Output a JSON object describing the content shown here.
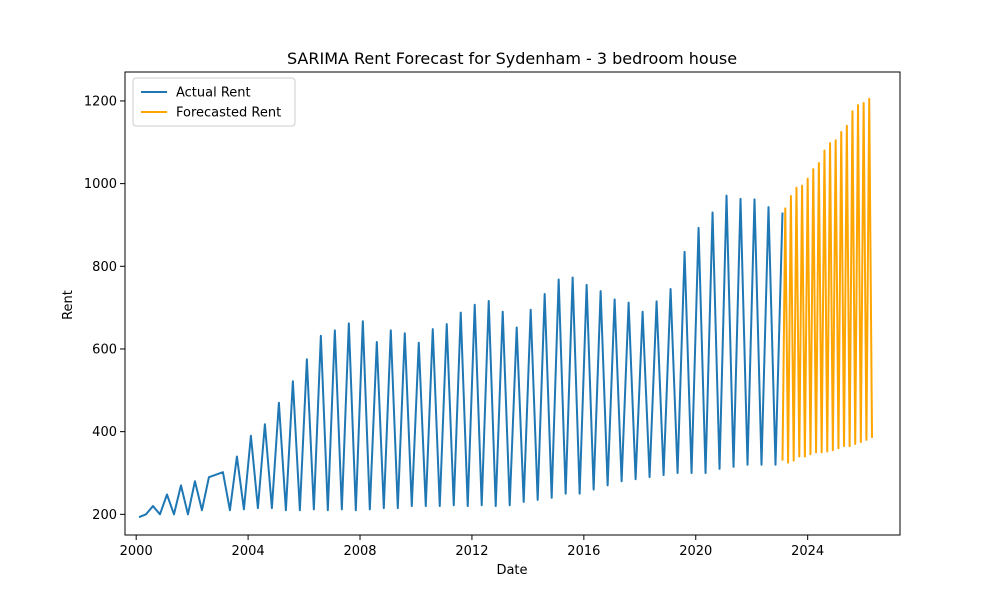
{
  "chart_data": {
    "type": "line",
    "title": "SARIMA Rent Forecast for Sydenham - 3 bedroom house",
    "xlabel": "Date",
    "ylabel": "Rent",
    "xlim": [
      1999.6,
      2027.3
    ],
    "ylim": [
      150,
      1270
    ],
    "xticks": [
      2000,
      2004,
      2008,
      2012,
      2016,
      2020,
      2024
    ],
    "xtick_labels": [
      "2000",
      "2004",
      "2008",
      "2012",
      "2016",
      "2020",
      "2024"
    ],
    "yticks": [
      200,
      400,
      600,
      800,
      1000,
      1200
    ],
    "ytick_labels": [
      "200",
      "400",
      "600",
      "800",
      "1000",
      "1200"
    ],
    "grid": false,
    "legend_position": "top-left",
    "series": [
      {
        "name": "Actual Rent",
        "color": "#1f77b4",
        "x": [
          2000.1,
          2000.35,
          2000.6,
          2000.85,
          2001.1,
          2001.35,
          2001.6,
          2001.85,
          2002.1,
          2002.35,
          2002.6,
          2003.1,
          2003.35,
          2003.6,
          2003.85,
          2004.1,
          2004.35,
          2004.6,
          2004.85,
          2005.1,
          2005.35,
          2005.6,
          2005.85,
          2006.1,
          2006.35,
          2006.6,
          2006.85,
          2007.1,
          2007.35,
          2007.6,
          2007.85,
          2008.1,
          2008.35,
          2008.6,
          2008.85,
          2009.1,
          2009.35,
          2009.6,
          2009.85,
          2010.1,
          2010.35,
          2010.6,
          2010.85,
          2011.1,
          2011.35,
          2011.6,
          2011.85,
          2012.1,
          2012.35,
          2012.6,
          2012.85,
          2013.1,
          2013.35,
          2013.6,
          2013.85,
          2014.1,
          2014.35,
          2014.6,
          2014.85,
          2015.1,
          2015.35,
          2015.6,
          2015.85,
          2016.1,
          2016.35,
          2016.6,
          2016.85,
          2017.1,
          2017.35,
          2017.6,
          2017.85,
          2018.1,
          2018.35,
          2018.6,
          2018.85,
          2019.1,
          2019.35,
          2019.6,
          2019.85,
          2020.1,
          2020.35,
          2020.6,
          2020.85,
          2021.1,
          2021.35,
          2021.6,
          2021.85,
          2022.1,
          2022.35,
          2022.6,
          2022.85,
          2023.1
        ],
        "values": [
          193,
          200,
          220,
          200,
          248,
          200,
          270,
          200,
          280,
          210,
          290,
          302,
          210,
          340,
          212,
          390,
          215,
          418,
          215,
          470,
          210,
          522,
          210,
          575,
          212,
          632,
          210,
          645,
          212,
          662,
          210,
          667,
          212,
          617,
          215,
          645,
          215,
          638,
          220,
          615,
          220,
          648,
          220,
          660,
          222,
          688,
          220,
          707,
          222,
          716,
          220,
          690,
          222,
          652,
          230,
          695,
          235,
          733,
          240,
          768,
          250,
          773,
          250,
          755,
          260,
          740,
          270,
          720,
          280,
          712,
          285,
          690,
          290,
          715,
          295,
          745,
          300,
          835,
          300,
          893,
          300,
          930,
          310,
          971,
          315,
          963,
          320,
          962,
          320,
          943,
          320,
          930
        ]
      },
      {
        "name": "Forecasted Rent",
        "color": "#ffa500",
        "x": [
          2023.1,
          2023.2,
          2023.3,
          2023.4,
          2023.5,
          2023.6,
          2023.7,
          2023.8,
          2023.9,
          2024.0,
          2024.1,
          2024.2,
          2024.3,
          2024.4,
          2024.5,
          2024.6,
          2024.7,
          2024.8,
          2024.9,
          2025.0,
          2025.1,
          2025.2,
          2025.3,
          2025.4,
          2025.5,
          2025.6,
          2025.7,
          2025.8,
          2025.9,
          2026.0,
          2026.1,
          2026.2,
          2026.3
        ],
        "values": [
          330,
          940,
          325,
          970,
          330,
          990,
          340,
          995,
          340,
          1012,
          345,
          1035,
          350,
          1050,
          350,
          1080,
          352,
          1098,
          355,
          1105,
          360,
          1125,
          365,
          1140,
          365,
          1175,
          370,
          1190,
          375,
          1195,
          380,
          1205,
          385
        ]
      }
    ]
  }
}
